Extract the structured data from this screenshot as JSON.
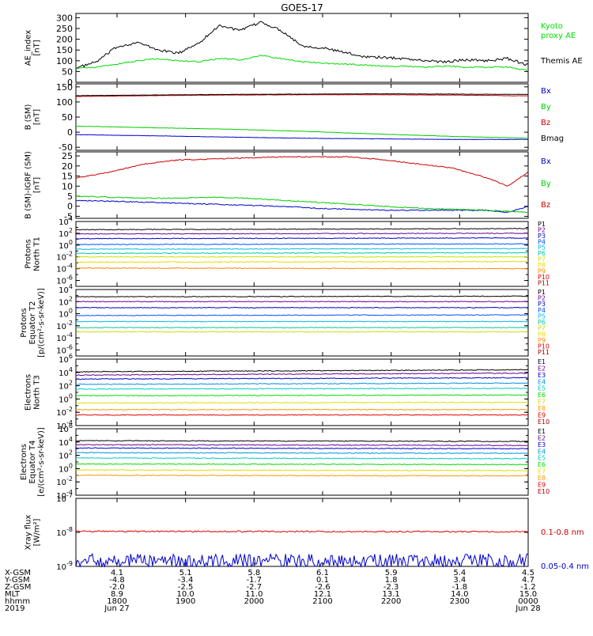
{
  "title": "GOES-17",
  "panels": [
    {
      "id": "ae",
      "ylabel_lines": [
        "AE_index",
        "[nT]"
      ],
      "yticks": [
        {
          "v": 0,
          "t": "0"
        },
        {
          "v": 50,
          "t": "50"
        },
        {
          "v": 100,
          "t": "100"
        },
        {
          "v": 150,
          "t": "150"
        },
        {
          "v": 200,
          "t": "200"
        },
        {
          "v": 250,
          "t": "250"
        },
        {
          "v": 300,
          "t": "300"
        }
      ],
      "ylim": [
        0,
        320
      ],
      "log": false,
      "legend": [
        {
          "lines": [
            "Kyoto",
            "proxy AE"
          ],
          "color": "#00dd00"
        },
        {
          "lines": [
            "Themis AE"
          ],
          "color": "#000000"
        }
      ]
    },
    {
      "id": "bsm",
      "ylabel_lines": [
        "B (SM)",
        "[nT]"
      ],
      "yticks": [
        {
          "v": -50,
          "t": "-50"
        },
        {
          "v": 0,
          "t": "0"
        },
        {
          "v": 50,
          "t": "50"
        },
        {
          "v": 100,
          "t": "100"
        },
        {
          "v": 150,
          "t": "150"
        }
      ],
      "ylim": [
        -60,
        160
      ],
      "log": false,
      "legend": [
        {
          "lines": [
            "Bx"
          ],
          "color": "#0000cc"
        },
        {
          "lines": [
            "By"
          ],
          "color": "#00cc00"
        },
        {
          "lines": [
            "Bz"
          ],
          "color": "#cc0000"
        },
        {
          "lines": [
            "Bmag"
          ],
          "color": "#000000"
        }
      ]
    },
    {
      "id": "bigrf",
      "ylabel_lines": [
        "B (SM)-IGRF (SM)",
        "[nT]"
      ],
      "yticks": [
        {
          "v": -5,
          "t": "-5"
        },
        {
          "v": 0,
          "t": "0"
        },
        {
          "v": 5,
          "t": "5"
        },
        {
          "v": 10,
          "t": "10"
        },
        {
          "v": 15,
          "t": "15"
        },
        {
          "v": 20,
          "t": "20"
        },
        {
          "v": 25,
          "t": "25"
        }
      ],
      "ylim": [
        -6,
        27
      ],
      "log": false,
      "legend": [
        {
          "lines": [
            "Bx"
          ],
          "color": "#0000cc"
        },
        {
          "lines": [
            "By"
          ],
          "color": "#00cc00"
        },
        {
          "lines": [
            "Bz"
          ],
          "color": "#cc0000"
        }
      ]
    },
    {
      "id": "prot1",
      "ylabel_lines": [
        "Protons",
        "North T1"
      ],
      "yticks": [
        {
          "v": -6,
          "t": "10",
          "e": "-6"
        },
        {
          "v": -4,
          "t": "10",
          "e": "-4"
        },
        {
          "v": -2,
          "t": "10",
          "e": "-2"
        },
        {
          "v": 0,
          "t": "10",
          "e": "0"
        },
        {
          "v": 2,
          "t": "10",
          "e": "2"
        },
        {
          "v": 4,
          "t": "10",
          "e": "4"
        }
      ],
      "ylim": [
        -7,
        4
      ],
      "log": true,
      "channels": [
        "P1",
        "P2",
        "P3",
        "P4",
        "P5",
        "P6",
        "P7",
        "P8",
        "P9",
        "P10",
        "P11"
      ]
    },
    {
      "id": "prot2",
      "ylabel_lines": [
        "Protons",
        "Equator T2",
        "[p/(cm²-s-sr-keV)]"
      ],
      "yticks": [
        {
          "v": -6,
          "t": "10",
          "e": "-6"
        },
        {
          "v": -4,
          "t": "10",
          "e": "-4"
        },
        {
          "v": -2,
          "t": "10",
          "e": "-2"
        },
        {
          "v": 0,
          "t": "10",
          "e": "0"
        },
        {
          "v": 2,
          "t": "10",
          "e": "2"
        },
        {
          "v": 4,
          "t": "10",
          "e": "4"
        }
      ],
      "ylim": [
        -7,
        4
      ],
      "log": true,
      "channels": [
        "P1",
        "P2",
        "P3",
        "P4",
        "P5",
        "P6",
        "P7",
        "P8",
        "P9",
        "P10",
        "P11"
      ]
    },
    {
      "id": "elec3",
      "ylabel_lines": [
        "Electrons",
        "North T3"
      ],
      "yticks": [
        {
          "v": -4,
          "t": "10",
          "e": "-4"
        },
        {
          "v": -2,
          "t": "10",
          "e": "-2"
        },
        {
          "v": 0,
          "t": "10",
          "e": "0"
        },
        {
          "v": 2,
          "t": "10",
          "e": "2"
        },
        {
          "v": 4,
          "t": "10",
          "e": "4"
        },
        {
          "v": 6,
          "t": "10",
          "e": "6"
        }
      ],
      "ylim": [
        -4,
        6
      ],
      "log": true,
      "channels": [
        "E1",
        "E2",
        "E3",
        "E4",
        "E5",
        "E6",
        "E7",
        "E8",
        "E9",
        "E10"
      ]
    },
    {
      "id": "elec4",
      "ylabel_lines": [
        "Electrons",
        "Equator T4",
        "[e/(cm²-s-sr-keV)]"
      ],
      "yticks": [
        {
          "v": -4,
          "t": "10",
          "e": "-4"
        },
        {
          "v": -2,
          "t": "10",
          "e": "-2"
        },
        {
          "v": 0,
          "t": "10",
          "e": "0"
        },
        {
          "v": 2,
          "t": "10",
          "e": "2"
        },
        {
          "v": 4,
          "t": "10",
          "e": "4"
        },
        {
          "v": 6,
          "t": "10",
          "e": "6"
        }
      ],
      "ylim": [
        -4,
        6
      ],
      "log": true,
      "channels": [
        "E1",
        "E2",
        "E3",
        "E4",
        "E5",
        "E6",
        "E7",
        "E8",
        "E9",
        "E10"
      ]
    },
    {
      "id": "xray",
      "ylabel_lines": [
        "Xray flux",
        "[W/m²]"
      ],
      "yticks": [
        {
          "v": -9,
          "t": "10",
          "e": "-9"
        },
        {
          "v": -8,
          "t": "10",
          "e": "-8"
        },
        {
          "v": -7,
          "t": "10",
          "e": "-7"
        }
      ],
      "ylim": [
        -9,
        -7
      ],
      "log": true,
      "legend": [
        {
          "lines": [
            "0.1-0.8 nm"
          ],
          "color": "#cc0000"
        },
        {
          "lines": [
            "0.05-0.4 nm"
          ],
          "color": "#0000cc"
        }
      ]
    }
  ],
  "x_axis": {
    "range_hours": [
      17.4,
      24.0
    ],
    "ticks_hours": [
      18,
      19,
      20,
      21,
      22,
      23,
      24
    ],
    "row_labels": [
      "X-GSM",
      "Y-GSM",
      "Z-GSM",
      "MLT",
      "hhmm",
      "2019"
    ],
    "rows": [
      [
        "4.1",
        "5.1",
        "5.8",
        "6.1",
        "5.9",
        "5.4",
        "4.5"
      ],
      [
        "-4.8",
        "-3.4",
        "-1.7",
        "0.1",
        "1.8",
        "3.4",
        "4.7"
      ],
      [
        "-2.0",
        "-2.5",
        "-2.7",
        "-2.6",
        "-2.3",
        "-1.8",
        "-1.2"
      ],
      [
        "8.9",
        "10.0",
        "11.0",
        "12.1",
        "13.1",
        "14.0",
        "15.0"
      ],
      [
        "1800",
        "1900",
        "2000",
        "2100",
        "2200",
        "2300",
        "0000"
      ],
      [
        "Jun 27",
        "",
        "",
        "",
        "",
        "",
        "Jun 28"
      ]
    ]
  },
  "channel_colors": {
    "P1": "#000000",
    "P2": "#6a0094",
    "P3": "#0000cc",
    "P4": "#0050ff",
    "P5": "#00b8e6",
    "P6": "#00c8a0",
    "P7": "#ccdd00",
    "P8": "#e8d800",
    "P9": "#ff8800",
    "P10": "#e00000",
    "P11": "#aa0000",
    "E1": "#000000",
    "E2": "#6a0094",
    "E3": "#0000cc",
    "E4": "#0090e0",
    "E5": "#00c8c8",
    "E6": "#00dd00",
    "E7": "#d8e000",
    "E8": "#ff9900",
    "E9": "#e00000",
    "E10": "#aa0000"
  },
  "chart_data": [
    {
      "type": "line",
      "title": "GOES-17",
      "ylabel": "AE_index [nT]",
      "ylim": [
        0,
        320
      ],
      "x": [
        17.4,
        17.7,
        18.0,
        18.3,
        18.6,
        18.9,
        19.2,
        19.5,
        19.8,
        20.1,
        20.4,
        20.7,
        21.0,
        21.3,
        21.6,
        21.9,
        22.2,
        22.5,
        22.8,
        23.1,
        23.4,
        23.7,
        24.0
      ],
      "series": [
        {
          "name": "Themis AE",
          "values": [
            65,
            95,
            165,
            185,
            150,
            135,
            185,
            265,
            240,
            280,
            240,
            170,
            160,
            140,
            120,
            115,
            110,
            100,
            95,
            105,
            100,
            110,
            80
          ]
        },
        {
          "name": "Kyoto proxy AE",
          "values": [
            65,
            70,
            85,
            100,
            110,
            100,
            95,
            110,
            105,
            125,
            110,
            95,
            90,
            85,
            80,
            75,
            75,
            70,
            75,
            70,
            70,
            70,
            55
          ]
        }
      ]
    },
    {
      "type": "line",
      "ylabel": "B (SM) [nT]",
      "ylim": [
        -60,
        160
      ],
      "x": [
        17.4,
        18.5,
        19.6,
        20.7,
        21.8,
        22.9,
        24.0
      ],
      "series": [
        {
          "name": "Bx",
          "values": [
            -8,
            -12,
            -16,
            -20,
            -22,
            -24,
            -24
          ]
        },
        {
          "name": "By",
          "values": [
            20,
            15,
            10,
            3,
            -6,
            -14,
            -20
          ]
        },
        {
          "name": "Bz",
          "values": [
            118,
            121,
            123,
            124,
            124,
            123,
            120
          ]
        },
        {
          "name": "Bmag",
          "values": [
            121,
            123,
            125,
            126,
            127,
            126,
            125
          ]
        }
      ]
    },
    {
      "type": "line",
      "ylabel": "B (SM)-IGRF (SM) [nT]",
      "ylim": [
        -6,
        27
      ],
      "x": [
        17.4,
        17.9,
        18.4,
        18.9,
        19.4,
        19.9,
        20.4,
        20.9,
        21.4,
        21.9,
        22.4,
        22.9,
        23.4,
        23.7,
        24.0
      ],
      "series": [
        {
          "name": "Bx",
          "values": [
            3,
            2.5,
            2,
            1.5,
            1,
            0.5,
            0,
            -1,
            -1.5,
            -2,
            -2,
            -2,
            -2,
            -3,
            0
          ]
        },
        {
          "name": "By",
          "values": [
            5,
            4.5,
            4,
            4,
            4.5,
            4,
            3,
            2,
            1,
            0,
            -1,
            -1.5,
            -2,
            -2.5,
            -3
          ]
        },
        {
          "name": "Bz",
          "values": [
            14,
            17,
            21,
            23,
            23.5,
            24,
            24.5,
            24.5,
            24.5,
            23,
            21,
            19,
            14,
            10,
            17
          ]
        }
      ]
    },
    {
      "type": "line",
      "ylabel": "Protons North T1",
      "log_scale": true,
      "ylim": [
        -7,
        4
      ],
      "x": [
        17.4,
        24.0
      ],
      "series": [
        {
          "name": "P1",
          "values": [
            2.6,
            2.8
          ]
        },
        {
          "name": "P2",
          "values": [
            1.9,
            2.0
          ]
        },
        {
          "name": "P3",
          "values": [
            1.1,
            1.2
          ]
        },
        {
          "name": "P4",
          "values": [
            0.1,
            0.2
          ]
        },
        {
          "name": "P5",
          "values": [
            -0.7,
            -0.6
          ]
        },
        {
          "name": "P6",
          "values": [
            -1.4,
            -1.3
          ]
        },
        {
          "name": "P7",
          "values": [
            -2.0,
            -2.0
          ]
        },
        {
          "name": "P8",
          "values": [
            -2.9,
            -2.8
          ]
        },
        {
          "name": "P9",
          "values": [
            -3.9,
            -4.0
          ]
        }
      ]
    },
    {
      "type": "line",
      "ylabel": "Protons Equator T2 [p/(cm²-s-sr-keV)]",
      "log_scale": true,
      "ylim": [
        -7,
        4
      ],
      "x": [
        17.4,
        24.0
      ],
      "series": [
        {
          "name": "P1",
          "values": [
            2.8,
            2.9
          ]
        },
        {
          "name": "P2",
          "values": [
            2.0,
            2.0
          ]
        },
        {
          "name": "P3",
          "values": [
            1.0,
            1.0
          ]
        },
        {
          "name": "P4",
          "values": [
            -0.3,
            -0.2
          ]
        },
        {
          "name": "P5",
          "values": [
            -1.3,
            -1.3
          ]
        },
        {
          "name": "P6",
          "values": [
            -2.3,
            -2.3
          ]
        },
        {
          "name": "P7",
          "values": [
            -3.0,
            -3.0
          ]
        }
      ]
    },
    {
      "type": "line",
      "ylabel": "Electrons North T3",
      "log_scale": true,
      "ylim": [
        -4,
        6
      ],
      "x": [
        17.4,
        24.0
      ],
      "series": [
        {
          "name": "E1",
          "values": [
            4.1,
            4.4
          ]
        },
        {
          "name": "E2",
          "values": [
            3.6,
            3.9
          ]
        },
        {
          "name": "E3",
          "values": [
            3.0,
            3.2
          ]
        },
        {
          "name": "E4",
          "values": [
            2.2,
            2.4
          ]
        },
        {
          "name": "E5",
          "values": [
            1.5,
            1.6
          ]
        },
        {
          "name": "E6",
          "values": [
            0.5,
            0.6
          ]
        },
        {
          "name": "E7",
          "values": [
            -0.6,
            -0.5
          ]
        },
        {
          "name": "E8",
          "values": [
            -1.6,
            -1.6
          ]
        },
        {
          "name": "E9",
          "values": [
            -2.4,
            -2.4
          ]
        }
      ]
    },
    {
      "type": "line",
      "ylabel": "Electrons Equator T4 [e/(cm²-s-sr-keV)]",
      "log_scale": true,
      "ylim": [
        -4,
        6
      ],
      "x": [
        17.4,
        24.0
      ],
      "series": [
        {
          "name": "E1",
          "values": [
            4.2,
            4.1
          ]
        },
        {
          "name": "E2",
          "values": [
            3.6,
            3.5
          ]
        },
        {
          "name": "E3",
          "values": [
            3.1,
            3.0
          ]
        },
        {
          "name": "E4",
          "values": [
            2.4,
            2.3
          ]
        },
        {
          "name": "E5",
          "values": [
            1.6,
            1.5
          ]
        },
        {
          "name": "E6",
          "values": [
            0.7,
            0.6
          ]
        },
        {
          "name": "E7",
          "values": [
            -0.2,
            -0.3
          ]
        },
        {
          "name": "E8",
          "values": [
            -1.0,
            -1.1
          ]
        }
      ]
    },
    {
      "type": "line",
      "ylabel": "Xray flux [W/m²]",
      "log_scale": true,
      "ylim": [
        -9,
        -7
      ],
      "x": [
        17.4,
        24.0
      ],
      "series": [
        {
          "name": "0.1-0.8 nm",
          "values": [
            -7.97,
            -7.98
          ]
        },
        {
          "name": "0.05-0.4 nm",
          "values": [
            -8.85,
            -8.85
          ]
        }
      ]
    }
  ]
}
